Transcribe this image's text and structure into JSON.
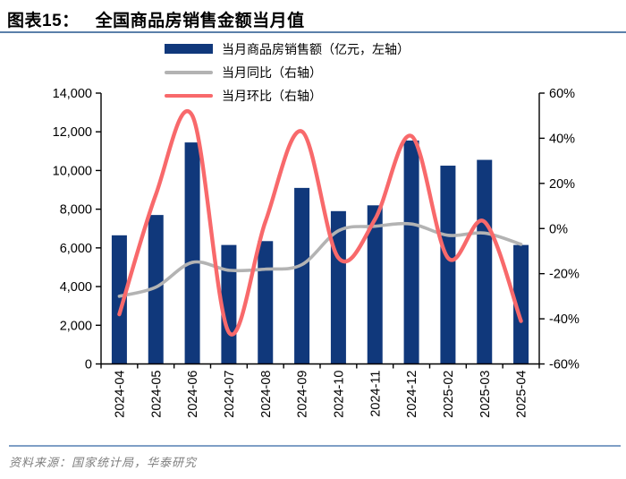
{
  "header": {
    "title_tag": "图表15：",
    "title_text": "全国商品房销售金额当月值"
  },
  "legend": [
    {
      "label": "当月商品房销售额（亿元，左轴）",
      "swatch": "bar",
      "color": "#10387b"
    },
    {
      "label": "当月同比（右轴）",
      "swatch": "line",
      "color": "#b3b3b3"
    },
    {
      "label": "当月环比（右轴）",
      "swatch": "line",
      "color": "#f8696b"
    }
  ],
  "source_text": "资料来源：国家统计局，华泰研究",
  "colors": {
    "bar": "#10387b",
    "yoy_line": "#b3b3b3",
    "mom_line": "#f8696b",
    "axis": "#000000",
    "title_rule": "#5b80aa",
    "source_rule": "#7f9fc6"
  },
  "chart_data": {
    "type": "bar",
    "title": "全国商品房销售金额当月值",
    "categories": [
      "2024-04",
      "2024-05",
      "2024-06",
      "2024-07",
      "2024-08",
      "2024-09",
      "2024-10",
      "2024-11",
      "2024-12",
      "2025-02",
      "2025-03",
      "2025-04"
    ],
    "series": [
      {
        "name": "当月商品房销售额（亿元，左轴）",
        "type": "bar",
        "axis": "left",
        "values": [
          6650,
          7700,
          11450,
          6150,
          6350,
          9100,
          7900,
          8200,
          11550,
          10250,
          10550,
          6150
        ]
      },
      {
        "name": "当月同比（右轴）",
        "type": "line",
        "axis": "right",
        "values": [
          -30,
          -26,
          -15,
          -18.5,
          -18,
          -16,
          -1,
          1,
          2,
          -3,
          -2,
          -7
        ]
      },
      {
        "name": "当月环比（右轴）",
        "type": "line",
        "axis": "right",
        "values": [
          -38,
          15,
          50,
          -46,
          3,
          43,
          -13,
          4,
          41,
          -13,
          3,
          -41
        ]
      }
    ],
    "left_axis": {
      "min": 0,
      "max": 14000,
      "tick_labels": [
        "14,000",
        "12,000",
        "10,000",
        "8,000",
        "6,000",
        "4,000",
        "2,000",
        "0"
      ]
    },
    "right_axis": {
      "min": -60,
      "max": 60,
      "tick_labels": [
        "60%",
        "40%",
        "20%",
        "0%",
        "-20%",
        "-40%",
        "-60%"
      ]
    },
    "grid": false,
    "legend_position": "top"
  }
}
